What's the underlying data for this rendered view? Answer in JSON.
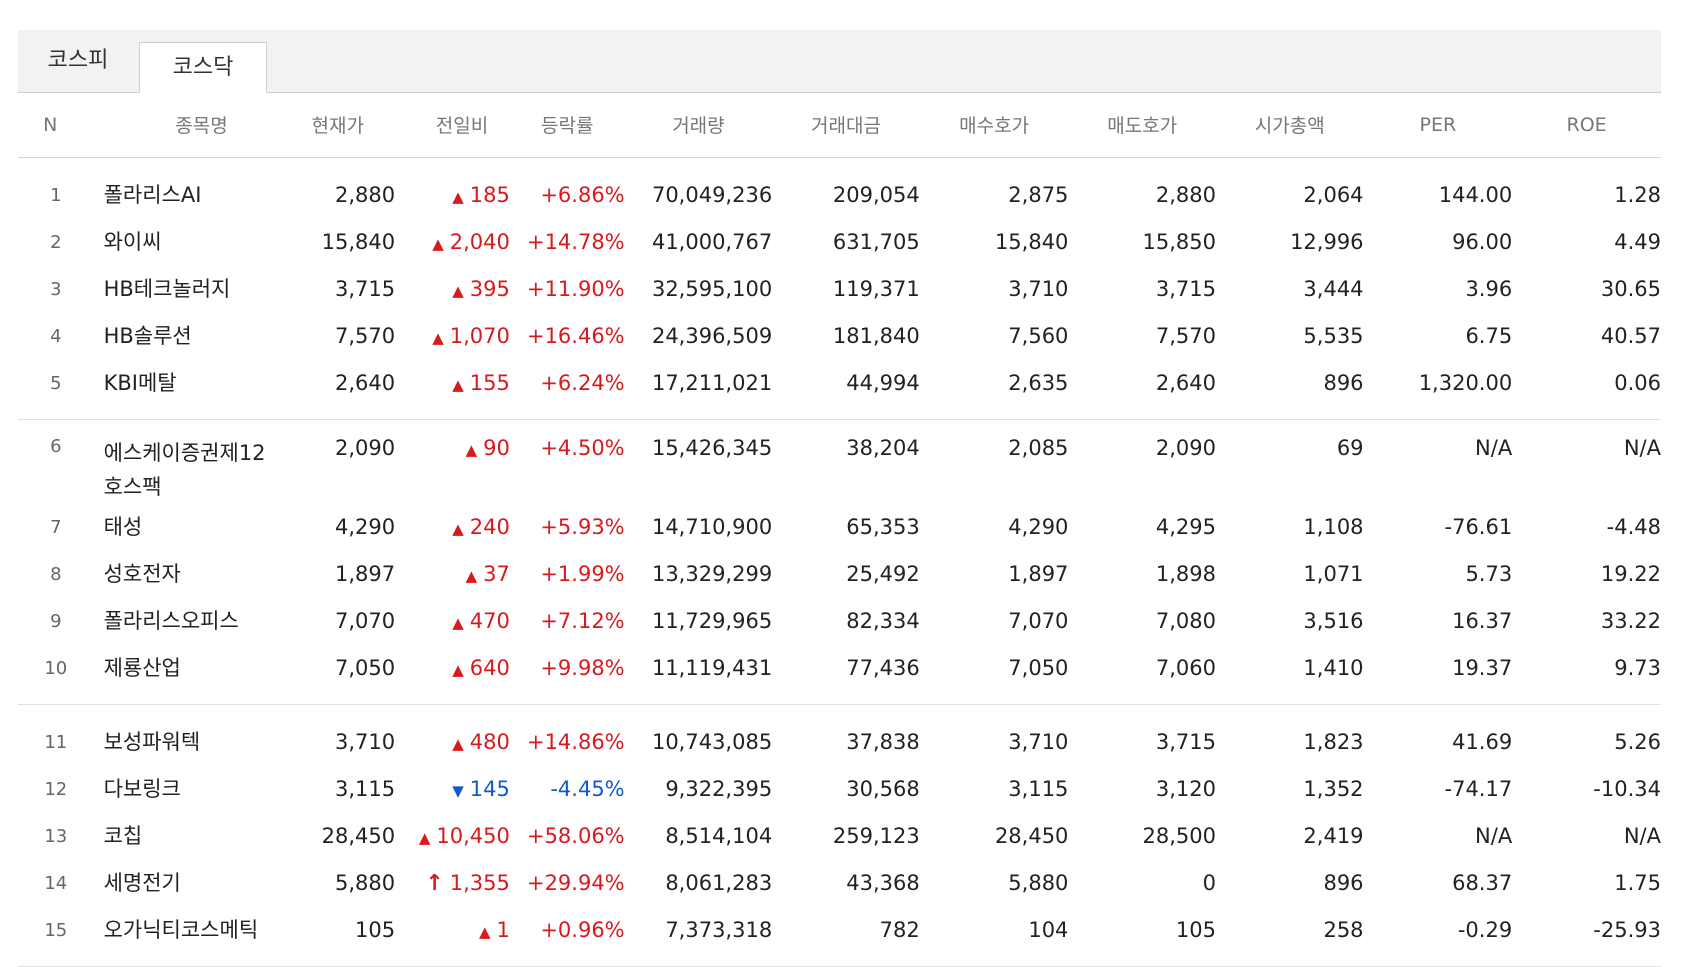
{
  "tabs": [
    {
      "label": "코스피",
      "active": false
    },
    {
      "label": "코스닥",
      "active": true
    }
  ],
  "headers": [
    "N",
    "종목명",
    "현재가",
    "전일비",
    "등락률",
    "거래량",
    "거래대금",
    "매수호가",
    "매도호가",
    "시가총액",
    "PER",
    "ROE"
  ],
  "colors": {
    "up": "#d8191e",
    "down": "#1059ce"
  },
  "rows": [
    {
      "rank": "1",
      "name": "폴라리스AI",
      "price": "2,880",
      "dir": "up",
      "arrow": "▲",
      "change": "185",
      "rate": "+6.86%",
      "volume": "70,049,236",
      "amount": "209,054",
      "bid": "2,875",
      "ask": "2,880",
      "mcap": "2,064",
      "per": "144.00",
      "roe": "1.28"
    },
    {
      "rank": "2",
      "name": "와이씨",
      "price": "15,840",
      "dir": "up",
      "arrow": "▲",
      "change": "2,040",
      "rate": "+14.78%",
      "volume": "41,000,767",
      "amount": "631,705",
      "bid": "15,840",
      "ask": "15,850",
      "mcap": "12,996",
      "per": "96.00",
      "roe": "4.49"
    },
    {
      "rank": "3",
      "name": "HB테크놀러지",
      "price": "3,715",
      "dir": "up",
      "arrow": "▲",
      "change": "395",
      "rate": "+11.90%",
      "volume": "32,595,100",
      "amount": "119,371",
      "bid": "3,710",
      "ask": "3,715",
      "mcap": "3,444",
      "per": "3.96",
      "roe": "30.65"
    },
    {
      "rank": "4",
      "name": "HB솔루션",
      "price": "7,570",
      "dir": "up",
      "arrow": "▲",
      "change": "1,070",
      "rate": "+16.46%",
      "volume": "24,396,509",
      "amount": "181,840",
      "bid": "7,560",
      "ask": "7,570",
      "mcap": "5,535",
      "per": "6.75",
      "roe": "40.57"
    },
    {
      "rank": "5",
      "name": "KBI메탈",
      "price": "2,640",
      "dir": "up",
      "arrow": "▲",
      "change": "155",
      "rate": "+6.24%",
      "volume": "17,211,021",
      "amount": "44,994",
      "bid": "2,635",
      "ask": "2,640",
      "mcap": "896",
      "per": "1,320.00",
      "roe": "0.06"
    },
    {
      "rank": "6",
      "name": "에스케이증권제12호스팩",
      "price": "2,090",
      "dir": "up",
      "arrow": "▲",
      "change": "90",
      "rate": "+4.50%",
      "volume": "15,426,345",
      "amount": "38,204",
      "bid": "2,085",
      "ask": "2,090",
      "mcap": "69",
      "per": "N/A",
      "roe": "N/A"
    },
    {
      "rank": "7",
      "name": "태성",
      "price": "4,290",
      "dir": "up",
      "arrow": "▲",
      "change": "240",
      "rate": "+5.93%",
      "volume": "14,710,900",
      "amount": "65,353",
      "bid": "4,290",
      "ask": "4,295",
      "mcap": "1,108",
      "per": "-76.61",
      "roe": "-4.48"
    },
    {
      "rank": "8",
      "name": "성호전자",
      "price": "1,897",
      "dir": "up",
      "arrow": "▲",
      "change": "37",
      "rate": "+1.99%",
      "volume": "13,329,299",
      "amount": "25,492",
      "bid": "1,897",
      "ask": "1,898",
      "mcap": "1,071",
      "per": "5.73",
      "roe": "19.22"
    },
    {
      "rank": "9",
      "name": "폴라리스오피스",
      "price": "7,070",
      "dir": "up",
      "arrow": "▲",
      "change": "470",
      "rate": "+7.12%",
      "volume": "11,729,965",
      "amount": "82,334",
      "bid": "7,070",
      "ask": "7,080",
      "mcap": "3,516",
      "per": "16.37",
      "roe": "33.22"
    },
    {
      "rank": "10",
      "name": "제룡산업",
      "price": "7,050",
      "dir": "up",
      "arrow": "▲",
      "change": "640",
      "rate": "+9.98%",
      "volume": "11,119,431",
      "amount": "77,436",
      "bid": "7,050",
      "ask": "7,060",
      "mcap": "1,410",
      "per": "19.37",
      "roe": "9.73"
    },
    {
      "rank": "11",
      "name": "보성파워텍",
      "price": "3,710",
      "dir": "up",
      "arrow": "▲",
      "change": "480",
      "rate": "+14.86%",
      "volume": "10,743,085",
      "amount": "37,838",
      "bid": "3,710",
      "ask": "3,715",
      "mcap": "1,823",
      "per": "41.69",
      "roe": "5.26"
    },
    {
      "rank": "12",
      "name": "다보링크",
      "price": "3,115",
      "dir": "down",
      "arrow": "▼",
      "change": "145",
      "rate": "-4.45%",
      "volume": "9,322,395",
      "amount": "30,568",
      "bid": "3,115",
      "ask": "3,120",
      "mcap": "1,352",
      "per": "-74.17",
      "roe": "-10.34"
    },
    {
      "rank": "13",
      "name": "코칩",
      "price": "28,450",
      "dir": "up",
      "arrow": "▲",
      "change": "10,450",
      "rate": "+58.06%",
      "volume": "8,514,104",
      "amount": "259,123",
      "bid": "28,450",
      "ask": "28,500",
      "mcap": "2,419",
      "per": "N/A",
      "roe": "N/A"
    },
    {
      "rank": "14",
      "name": "세명전기",
      "price": "5,880",
      "dir": "up",
      "arrow": "↑",
      "change": "1,355",
      "rate": "+29.94%",
      "volume": "8,061,283",
      "amount": "43,368",
      "bid": "5,880",
      "ask": "0",
      "mcap": "896",
      "per": "68.37",
      "roe": "1.75"
    },
    {
      "rank": "15",
      "name": "오가닉티코스메틱",
      "price": "105",
      "dir": "up",
      "arrow": "▲",
      "change": "1",
      "rate": "+0.96%",
      "volume": "7,373,318",
      "amount": "782",
      "bid": "104",
      "ask": "105",
      "mcap": "258",
      "per": "-0.29",
      "roe": "-25.93"
    }
  ]
}
